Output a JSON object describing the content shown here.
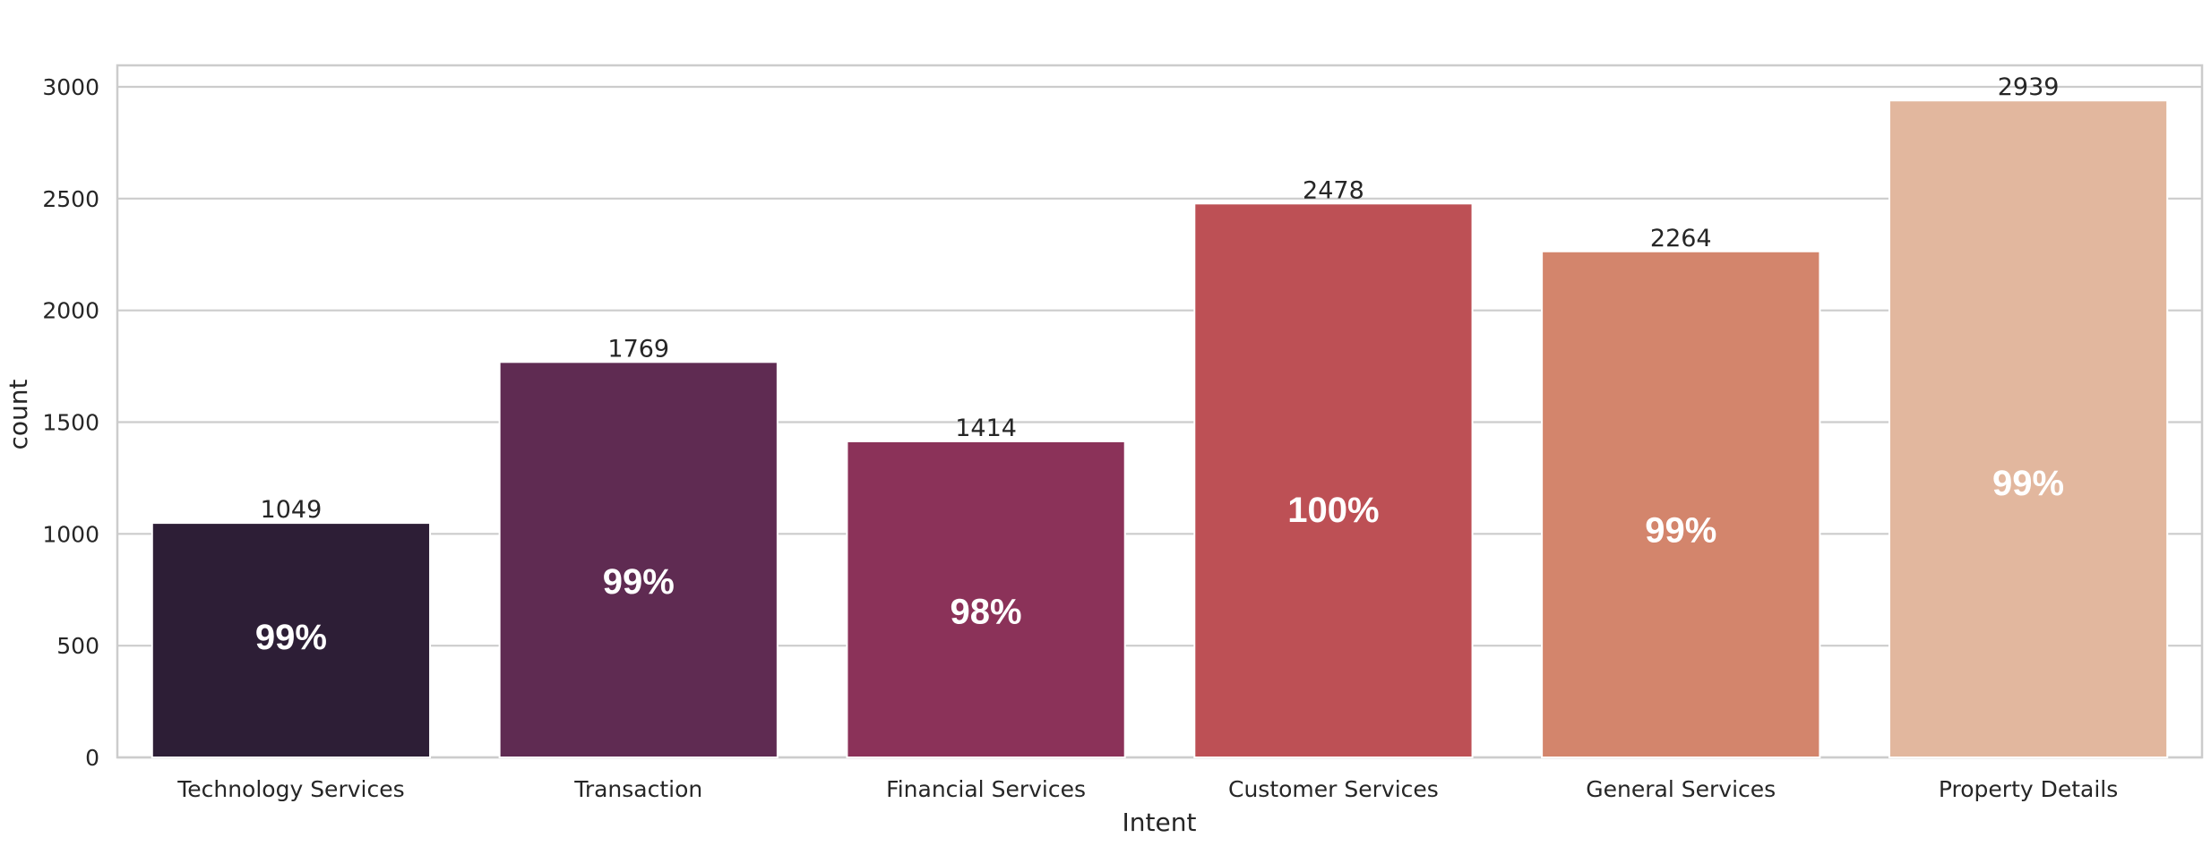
{
  "chart_data": {
    "type": "bar",
    "categories": [
      "Technology Services",
      "Transaction",
      "Financial Services",
      "Customer Services",
      "General Services",
      "Property Details"
    ],
    "values": [
      1049,
      1769,
      1414,
      2478,
      2264,
      2939
    ],
    "bar_value_labels": [
      "1049",
      "1769",
      "1414",
      "2478",
      "2264",
      "2939"
    ],
    "bar_percent_labels": [
      "99%",
      "99%",
      "98%",
      "100%",
      "99%",
      "99%"
    ],
    "percent_label_positions": [
      540,
      790,
      655,
      1110,
      1020,
      1230
    ],
    "colors": [
      "#2d1e36",
      "#5f2b52",
      "#8b3259",
      "#bd5055",
      "#d3856c",
      "#e2b79e"
    ],
    "title": "",
    "xlabel": "Intent",
    "ylabel": "count",
    "ylim": [
      0,
      3000
    ],
    "yticks": [
      0,
      500,
      1000,
      1500,
      2000,
      2500,
      3000
    ],
    "grid": true,
    "legend": "none"
  }
}
